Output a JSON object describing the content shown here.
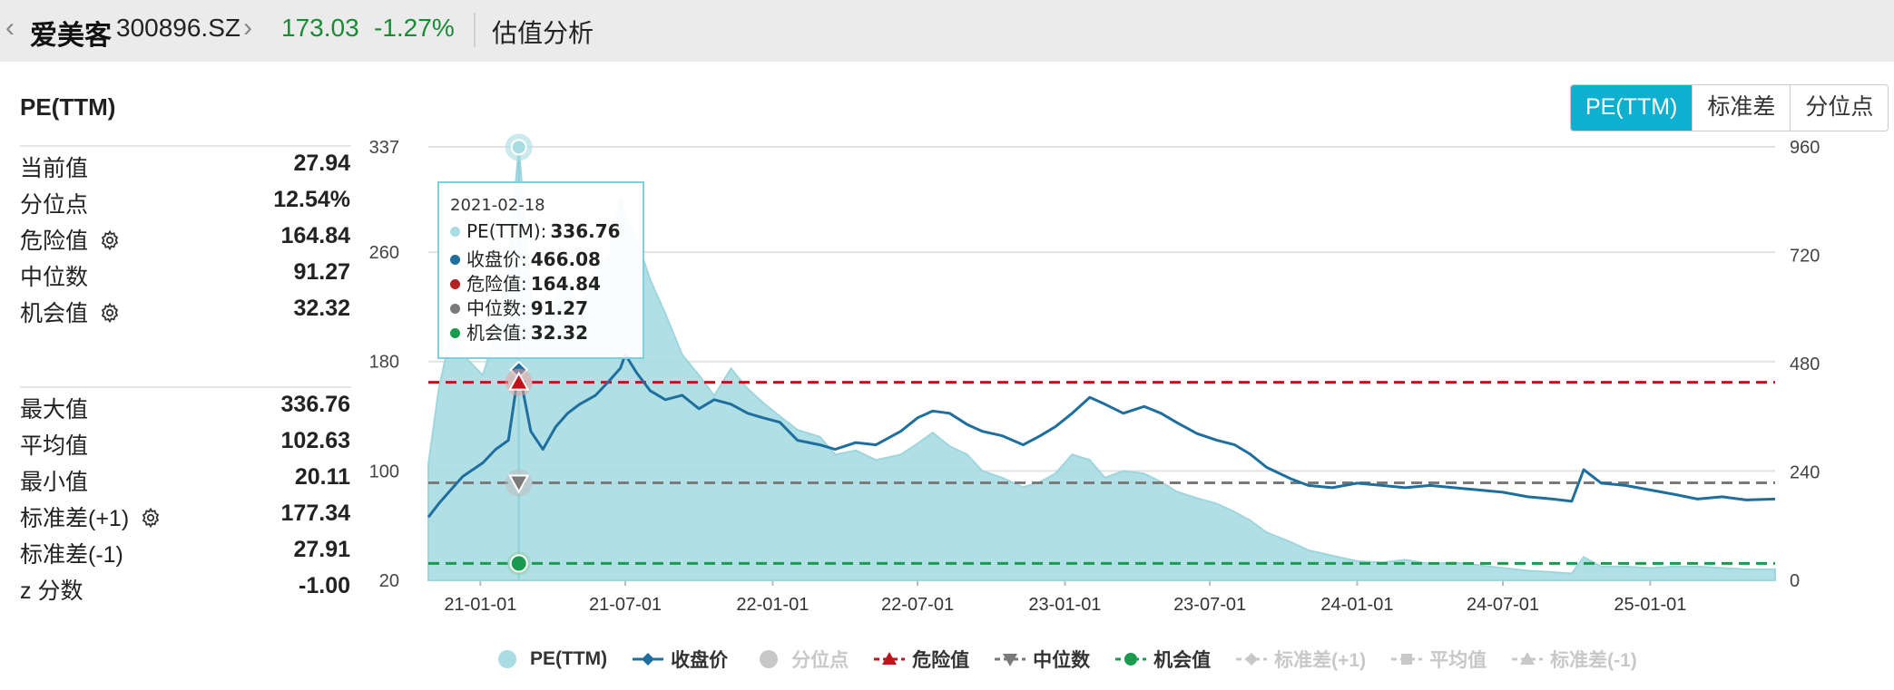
{
  "header": {
    "back_chevron": "‹",
    "stock_name": "爱美客",
    "stock_code": "300896.SZ",
    "forward_chevron": "›",
    "price": "173.03",
    "change": "-1.27%",
    "page_title": "估值分析"
  },
  "panel": {
    "title": "PE(TTM)",
    "group1": [
      {
        "label": "当前值",
        "value": "27.94",
        "gear": false
      },
      {
        "label": "分位点",
        "value": "12.54%",
        "gear": false
      },
      {
        "label": "危险值",
        "value": "164.84",
        "gear": true
      },
      {
        "label": "中位数",
        "value": "91.27",
        "gear": false
      },
      {
        "label": "机会值",
        "value": "32.32",
        "gear": true
      }
    ],
    "group2": [
      {
        "label": "最大值",
        "value": "336.76",
        "gear": false
      },
      {
        "label": "平均值",
        "value": "102.63",
        "gear": false
      },
      {
        "label": "最小值",
        "value": "20.11",
        "gear": false
      },
      {
        "label": "标准差(+1)",
        "value": "177.34",
        "gear": true
      },
      {
        "label": "标准差(-1)",
        "value": "27.91",
        "gear": false
      },
      {
        "label": "z 分数",
        "value": "-1.00",
        "gear": false
      }
    ]
  },
  "toggle": {
    "options": [
      "PE(TTM)",
      "标准差",
      "分位点"
    ],
    "active": "PE(TTM)"
  },
  "tooltip": {
    "date": "2021-02-18",
    "rows": [
      {
        "label": "PE(TTM)",
        "value": "336.76",
        "color": "#a9dce3"
      },
      {
        "label": "收盘价",
        "value": "466.08",
        "color": "#1f6f9e"
      },
      {
        "label": "危险值",
        "value": "164.84",
        "color": "#b22222"
      },
      {
        "label": "中位数",
        "value": "91.27",
        "color": "#7a7a7a"
      },
      {
        "label": "机会值",
        "value": "32.32",
        "color": "#1a9a4f"
      }
    ]
  },
  "legend": [
    {
      "label": "PE(TTM)",
      "symbol": "circle",
      "color": "#a9dce3",
      "active": true
    },
    {
      "label": "收盘价",
      "symbol": "line-diamond",
      "color": "#1f6f9e",
      "active": true
    },
    {
      "label": "分位点",
      "symbol": "circle",
      "color": "#c8c8c8",
      "active": false
    },
    {
      "label": "危险值",
      "symbol": "dash-triangle",
      "color": "#c0141c",
      "active": true
    },
    {
      "label": "中位数",
      "symbol": "dash-triangle-down",
      "color": "#7a7a7a",
      "active": true
    },
    {
      "label": "机会值",
      "symbol": "dash-circle",
      "color": "#1a9a4f",
      "active": true
    },
    {
      "label": "标准差(+1)",
      "symbol": "dash-diamond",
      "color": "#c8c8c8",
      "active": false
    },
    {
      "label": "平均值",
      "symbol": "dash-square",
      "color": "#c8c8c8",
      "active": false
    },
    {
      "label": "标准差(-1)",
      "symbol": "dash-triangle",
      "color": "#c8c8c8",
      "active": false
    }
  ],
  "chart_data": {
    "type": "area",
    "x_ticks": [
      "21-01-01",
      "21-07-01",
      "22-01-01",
      "22-07-01",
      "23-01-01",
      "23-07-01",
      "24-01-01",
      "24-07-01",
      "25-01-01"
    ],
    "left_axis": {
      "ticks": [
        337,
        260,
        180,
        100,
        20
      ],
      "range": [
        20,
        337
      ]
    },
    "right_axis": {
      "ticks": [
        960,
        720,
        480,
        240,
        0
      ],
      "range": [
        0,
        960
      ]
    },
    "reference_lines": {
      "danger": 164.84,
      "median": 91.27,
      "opportunity": 32.32
    },
    "x_range": [
      "2020-10-28",
      "2025-06-06"
    ],
    "series": [
      {
        "name": "PE(TTM)",
        "axis": "left",
        "style": "area",
        "x": [
          "2020-10-28",
          "2020-11-10",
          "2020-11-25",
          "2020-12-10",
          "2021-01-04",
          "2021-01-20",
          "2021-02-05",
          "2021-02-18",
          "2021-03-05",
          "2021-03-20",
          "2021-04-05",
          "2021-04-20",
          "2021-05-05",
          "2021-05-25",
          "2021-06-10",
          "2021-06-25",
          "2021-07-01",
          "2021-07-15",
          "2021-08-01",
          "2021-08-20",
          "2021-09-10",
          "2021-10-01",
          "2021-10-20",
          "2021-11-10",
          "2021-12-01",
          "2021-12-20",
          "2022-01-10",
          "2022-02-01",
          "2022-03-01",
          "2022-03-20",
          "2022-04-15",
          "2022-05-10",
          "2022-06-10",
          "2022-07-01",
          "2022-07-20",
          "2022-08-10",
          "2022-09-01",
          "2022-09-20",
          "2022-10-15",
          "2022-11-10",
          "2022-12-01",
          "2022-12-20",
          "2023-01-10",
          "2023-02-01",
          "2023-02-20",
          "2023-03-15",
          "2023-04-10",
          "2023-05-01",
          "2023-05-20",
          "2023-06-15",
          "2023-07-10",
          "2023-08-01",
          "2023-08-20",
          "2023-09-10",
          "2023-10-10",
          "2023-11-01",
          "2023-12-01",
          "2024-01-01",
          "2024-02-01",
          "2024-03-01",
          "2024-04-01",
          "2024-05-01",
          "2024-06-01",
          "2024-07-01",
          "2024-08-01",
          "2024-09-01",
          "2024-09-25",
          "2024-10-10",
          "2024-11-01",
          "2024-12-01",
          "2025-01-01",
          "2025-02-01",
          "2025-03-01",
          "2025-04-01",
          "2025-05-01",
          "2025-06-06"
        ],
        "y": [
          105,
          160,
          200,
          185,
          170,
          200,
          250,
          336.76,
          230,
          210,
          225,
          240,
          215,
          250,
          255,
          300,
          285,
          270,
          240,
          215,
          185,
          170,
          155,
          175,
          160,
          150,
          140,
          130,
          125,
          112,
          115,
          108,
          112,
          120,
          128,
          118,
          112,
          100,
          95,
          88,
          92,
          98,
          112,
          108,
          95,
          100,
          98,
          92,
          85,
          80,
          76,
          70,
          64,
          55,
          48,
          42,
          38,
          34,
          33,
          35,
          32,
          33,
          31,
          29,
          27,
          26,
          25,
          37,
          30,
          30,
          29,
          30,
          30,
          29,
          28,
          28
        ]
      },
      {
        "name": "收盘价",
        "axis": "right",
        "style": "line",
        "x": [
          "2020-10-28",
          "2020-11-10",
          "2020-11-25",
          "2020-12-10",
          "2021-01-04",
          "2021-01-20",
          "2021-02-05",
          "2021-02-18",
          "2021-03-05",
          "2021-03-20",
          "2021-04-05",
          "2021-04-20",
          "2021-05-05",
          "2021-05-25",
          "2021-06-10",
          "2021-06-25",
          "2021-07-01",
          "2021-07-15",
          "2021-08-01",
          "2021-08-20",
          "2021-09-10",
          "2021-10-01",
          "2021-10-20",
          "2021-11-10",
          "2021-12-01",
          "2021-12-20",
          "2022-01-10",
          "2022-02-01",
          "2022-03-01",
          "2022-03-20",
          "2022-04-15",
          "2022-05-10",
          "2022-06-10",
          "2022-07-01",
          "2022-07-20",
          "2022-08-10",
          "2022-09-01",
          "2022-09-20",
          "2022-10-15",
          "2022-11-10",
          "2022-12-01",
          "2022-12-20",
          "2023-01-10",
          "2023-02-01",
          "2023-02-20",
          "2023-03-15",
          "2023-04-10",
          "2023-05-01",
          "2023-05-20",
          "2023-06-15",
          "2023-07-10",
          "2023-08-01",
          "2023-08-20",
          "2023-09-10",
          "2023-10-10",
          "2023-11-01",
          "2023-12-01",
          "2024-01-01",
          "2024-02-01",
          "2024-03-01",
          "2024-04-01",
          "2024-05-01",
          "2024-06-01",
          "2024-07-01",
          "2024-08-01",
          "2024-09-01",
          "2024-09-25",
          "2024-10-10",
          "2024-11-01",
          "2024-12-01",
          "2025-01-01",
          "2025-02-01",
          "2025-03-01",
          "2025-04-01",
          "2025-05-01",
          "2025-06-06"
        ],
        "y": [
          140,
          170,
          200,
          230,
          260,
          290,
          310,
          466.08,
          330,
          290,
          340,
          370,
          390,
          410,
          440,
          470,
          500,
          460,
          420,
          400,
          410,
          380,
          400,
          390,
          370,
          360,
          350,
          310,
          300,
          290,
          305,
          300,
          330,
          360,
          375,
          370,
          345,
          330,
          320,
          300,
          320,
          340,
          370,
          405,
          390,
          370,
          385,
          370,
          350,
          325,
          310,
          300,
          280,
          250,
          225,
          210,
          205,
          215,
          210,
          205,
          210,
          205,
          200,
          195,
          185,
          180,
          175,
          245,
          215,
          210,
          200,
          190,
          180,
          185,
          178,
          180
        ]
      }
    ]
  }
}
